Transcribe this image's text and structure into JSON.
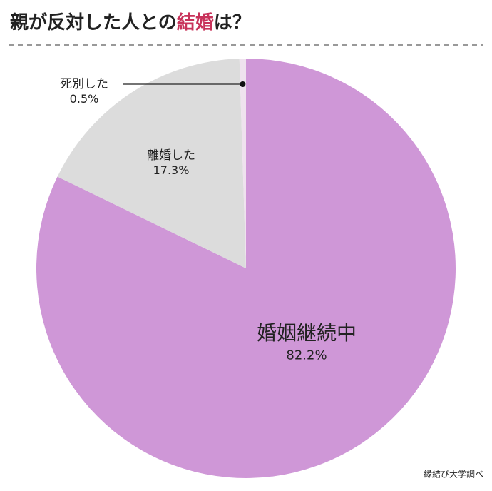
{
  "chart_data": {
    "type": "pie",
    "title": [
      {
        "text": "親が反対した人との"
      },
      {
        "text": "結婚",
        "color": "#c8325a"
      },
      {
        "text": "は？"
      }
    ],
    "categories": [
      "婚姻継続中",
      "離婚した",
      "死別した"
    ],
    "values": [
      82.2,
      17.3,
      0.5
    ],
    "value_labels": [
      "82.2%",
      "17.3%",
      "0.5%"
    ],
    "colors": [
      "#cf97d7",
      "#dcdcdc",
      "#efe2ee"
    ],
    "source": "縁結び大学調べ"
  }
}
